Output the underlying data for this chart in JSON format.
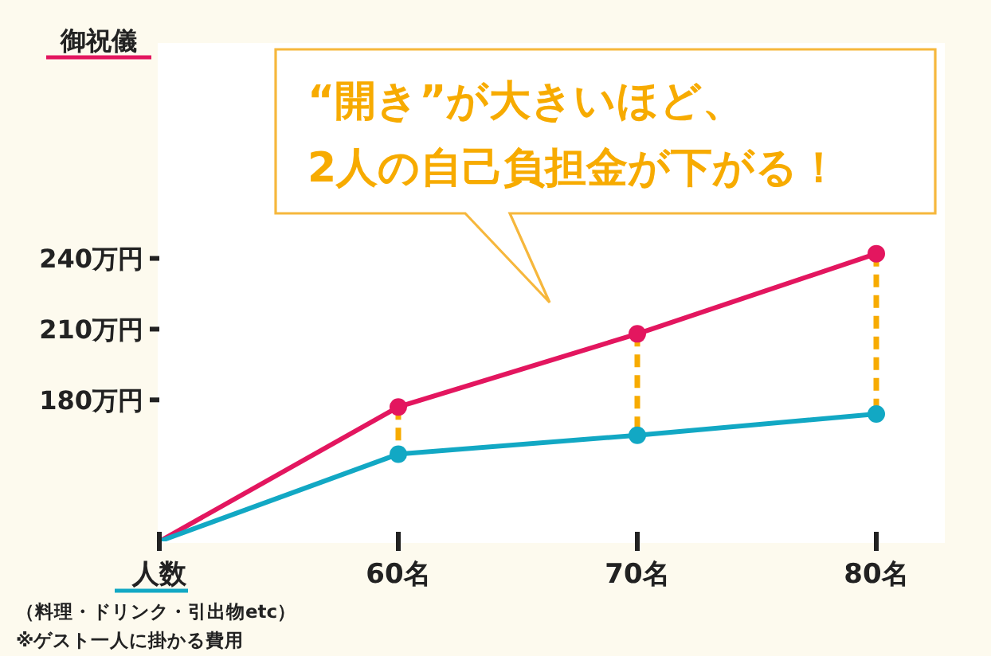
{
  "chart_data": {
    "type": "line",
    "xlabel": "人数",
    "ylabel": "御祝儀",
    "annotations": [
      "“開き”が大きいほど、\n2人の自己負担金が下がる！",
      "（料理・ドリンク・引出物etc）",
      "※ゲスト一人に掛かる費用"
    ],
    "categories": [
      null,
      "60名",
      "70名",
      "80名"
    ],
    "series": [
      {
        "color": "#e3165f",
        "values": [
          120,
          177,
          208,
          242
        ]
      },
      {
        "color": "#12a8c4",
        "values": [
          120,
          157,
          165,
          174
        ]
      }
    ],
    "ylim": [
      120,
      330
    ],
    "yticks": [
      {
        "value": 180,
        "label": "180万円"
      },
      {
        "value": 210,
        "label": "210万円"
      },
      {
        "value": 240,
        "label": "240万円"
      }
    ],
    "marker": "circle"
  }
}
